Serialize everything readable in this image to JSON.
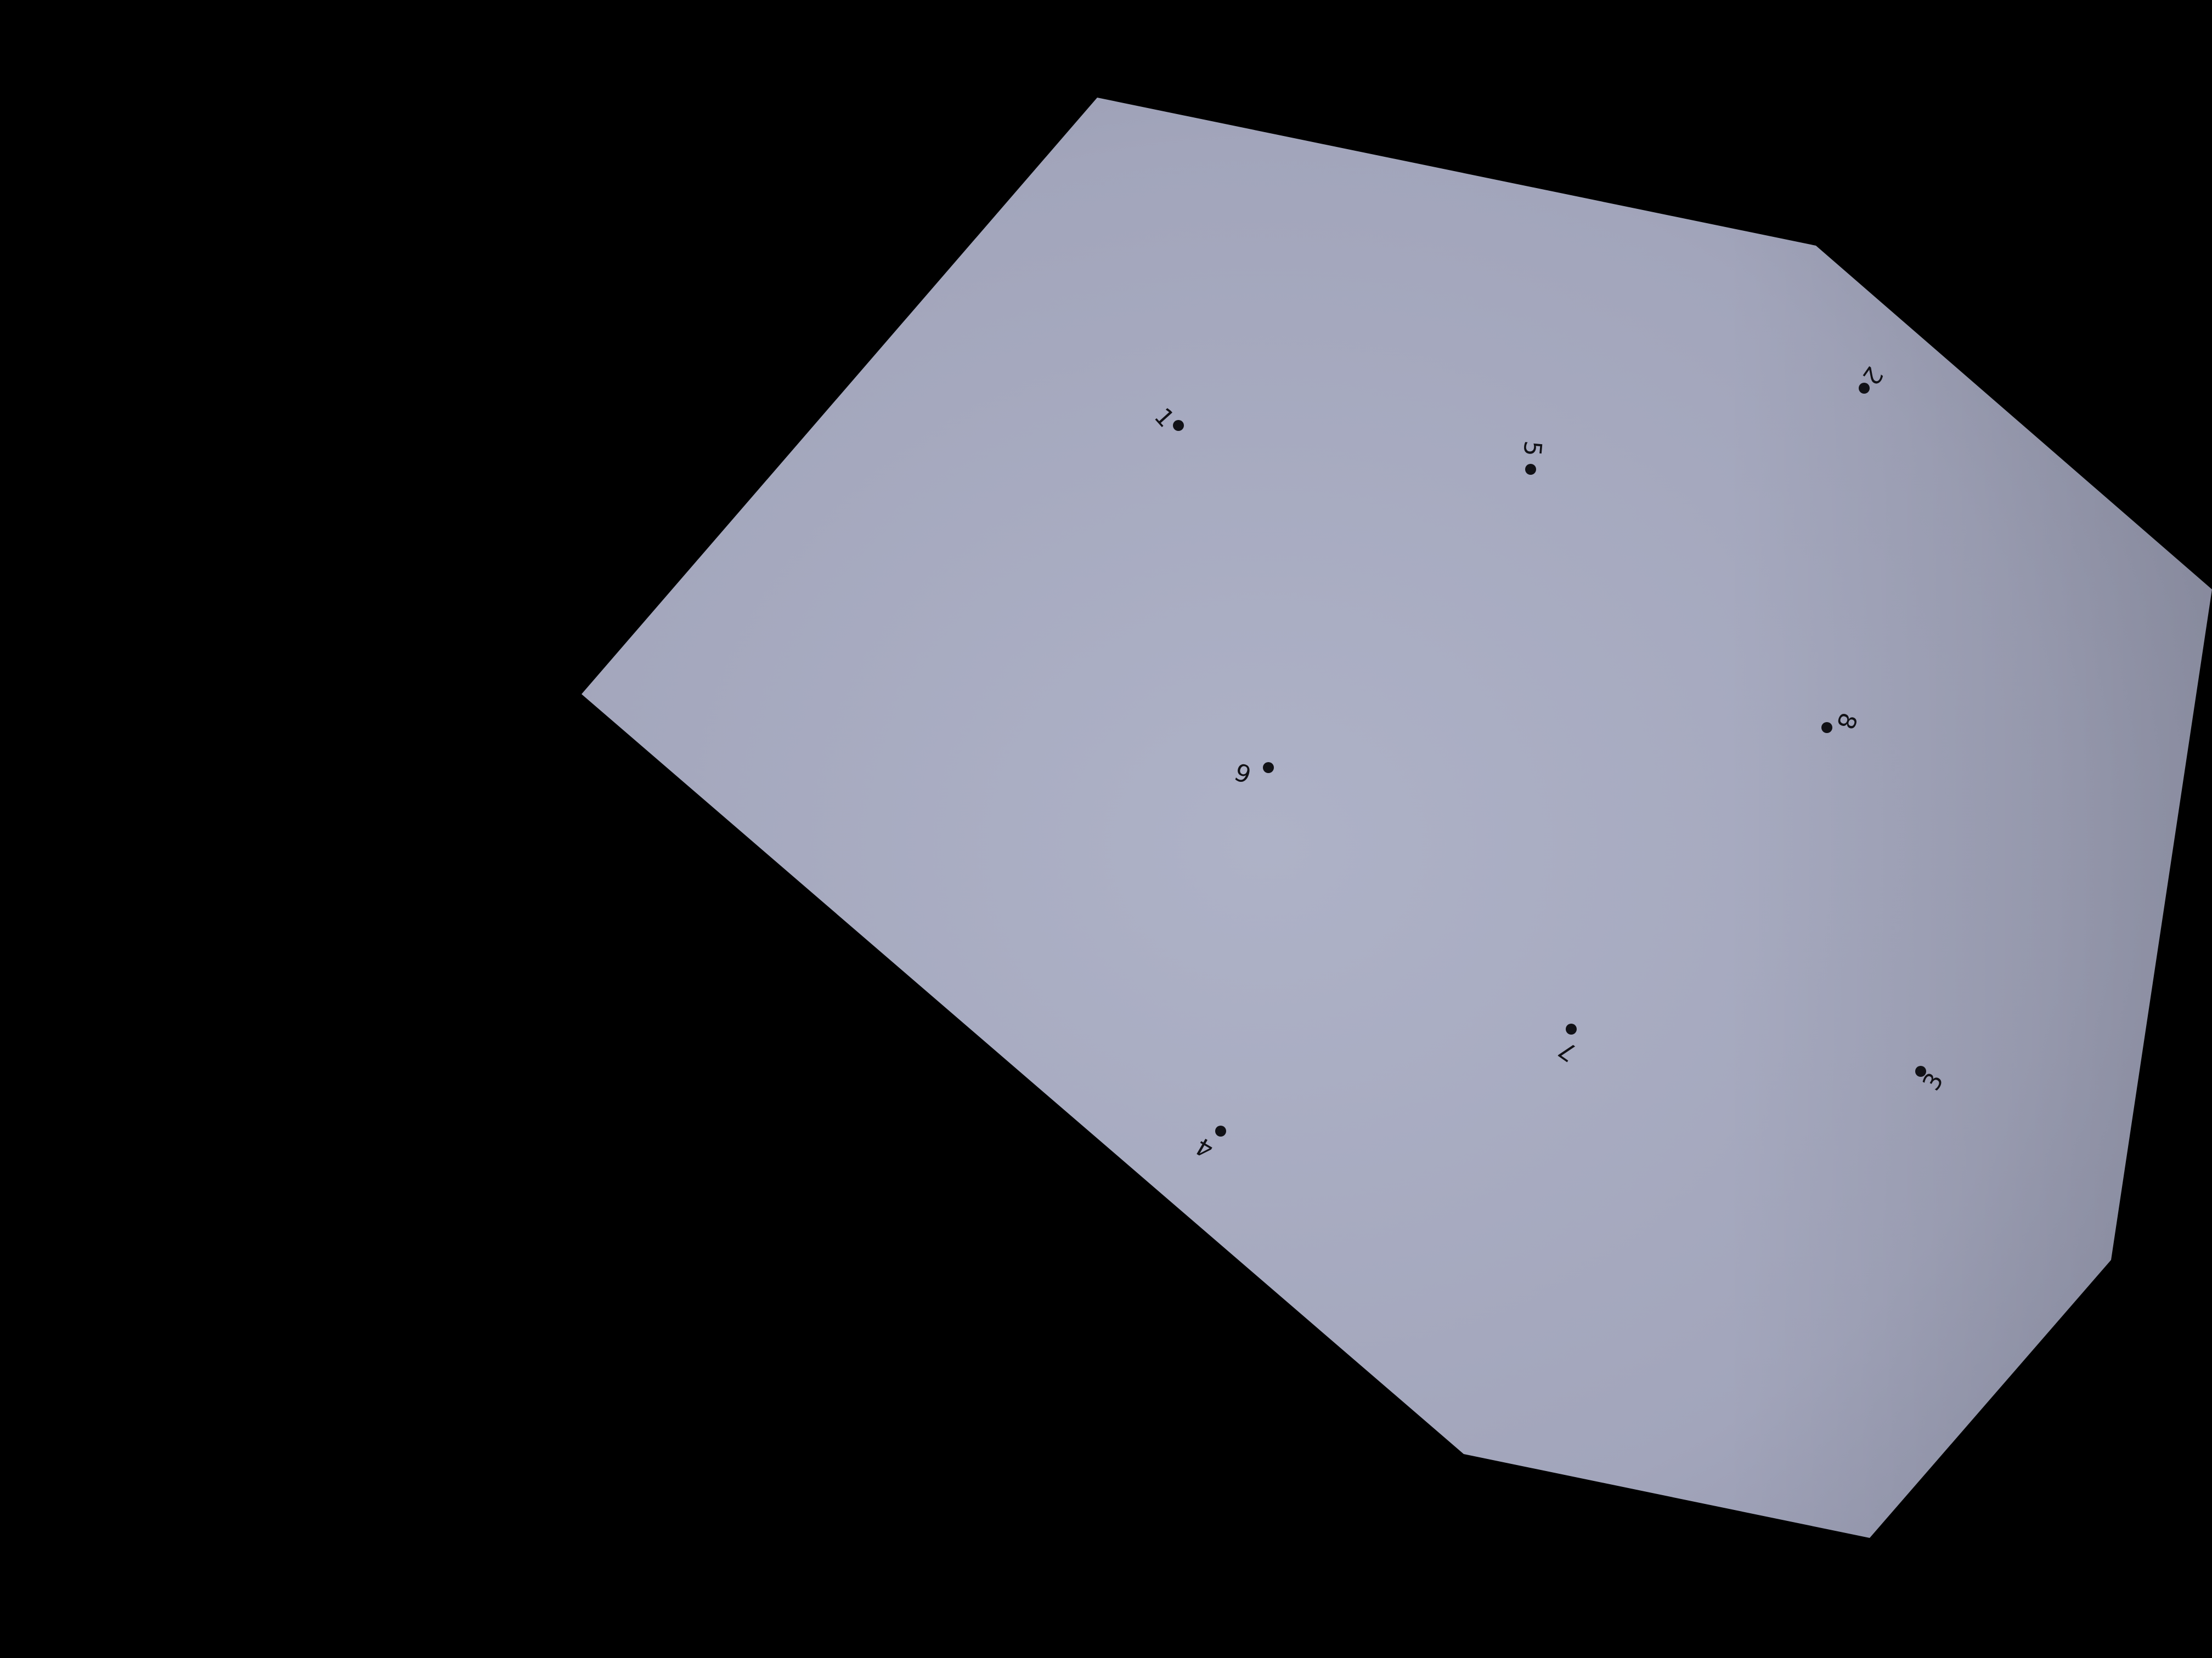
{
  "scene": {
    "background_color": "#000000",
    "paper_color_light": "#aeb2c7",
    "paper_color_dark": "#8f92a8",
    "dot_color": "#111116"
  },
  "dots": [
    {
      "label": "1"
    },
    {
      "label": "2"
    },
    {
      "label": "3"
    },
    {
      "label": "4"
    },
    {
      "label": "5"
    },
    {
      "label": "6"
    },
    {
      "label": "7"
    },
    {
      "label": "8"
    }
  ]
}
